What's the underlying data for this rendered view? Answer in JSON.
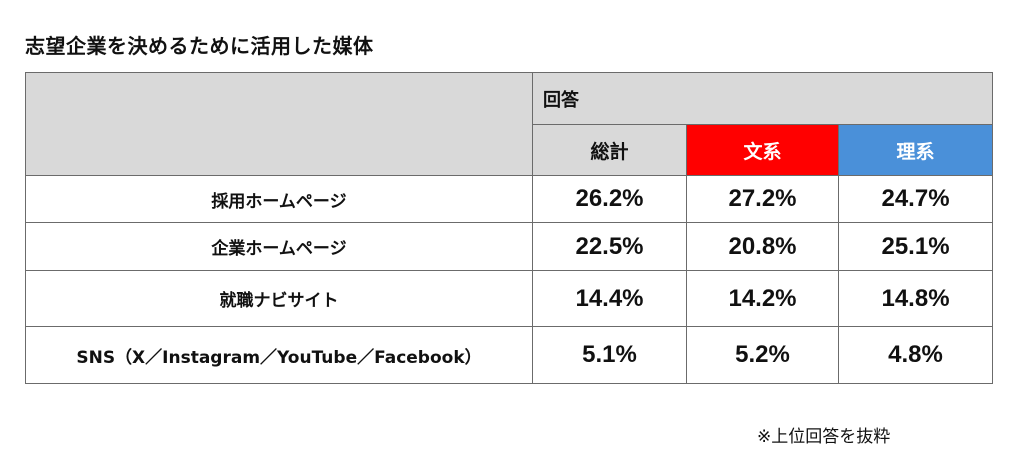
{
  "title": "志望企業を決めるために活用した媒体",
  "chart_data": {
    "type": "table",
    "group_header": "回答",
    "columns": [
      "総計",
      "文系",
      "理系"
    ],
    "column_colors": {
      "総計": "#d9d9d9",
      "文系": "#ff0000",
      "理系": "#4a90d9"
    },
    "rows": [
      {
        "label": "採用ホームページ",
        "values": [
          "26.2%",
          "27.2%",
          "24.7%"
        ]
      },
      {
        "label": "企業ホームページ",
        "values": [
          "22.5%",
          "20.8%",
          "25.1%"
        ]
      },
      {
        "label": "就職ナビサイト",
        "values": [
          "14.4%",
          "14.2%",
          "14.8%"
        ]
      },
      {
        "label": "SNS（X／Instagram／YouTube／Facebook）",
        "values": [
          "5.1%",
          "5.2%",
          "4.8%"
        ]
      }
    ]
  },
  "footnote": "※上位回答を抜粋"
}
